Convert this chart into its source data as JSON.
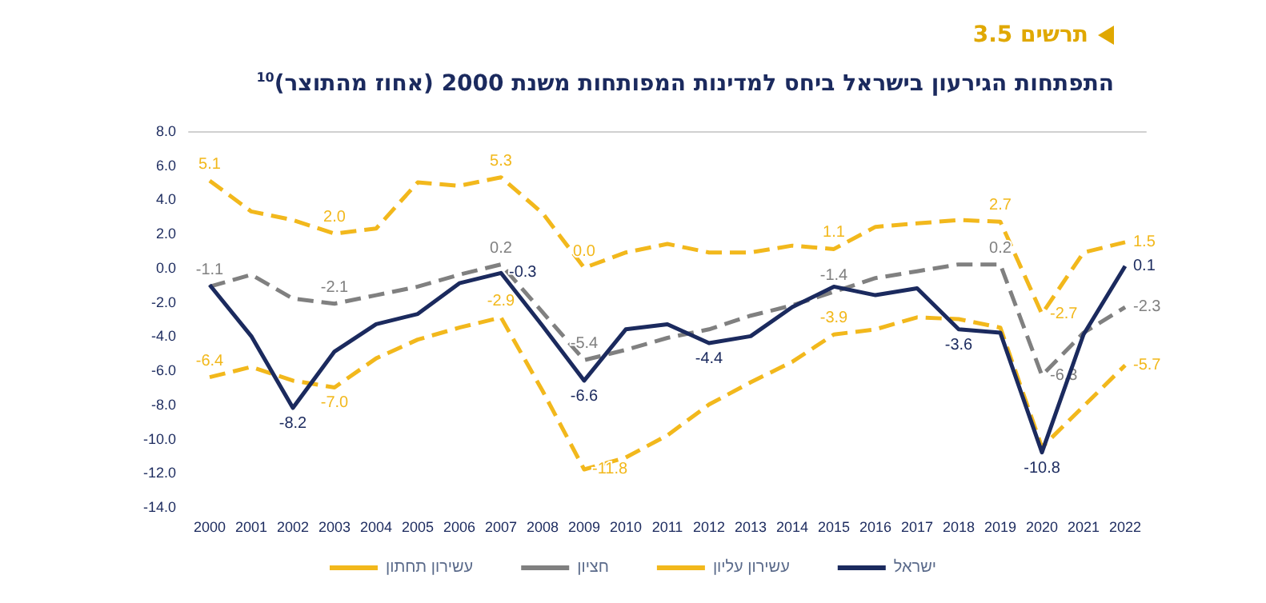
{
  "chart_data": {
    "type": "line",
    "subtitle": "תרשים 3.5",
    "title": "התפתחות הגירעון בישראל ביחס למדינות המפותחות משנת 2000 (אחוז מהתוצר)$^{10}$",
    "categories": [
      "2000",
      "2001",
      "2002",
      "2003",
      "2004",
      "2005",
      "2006",
      "2007",
      "2008",
      "2009",
      "2010",
      "2011",
      "2012",
      "2013",
      "2014",
      "2015",
      "2016",
      "2017",
      "2018",
      "2019",
      "2020",
      "2021",
      "2022"
    ],
    "ylim": [
      -14,
      8
    ],
    "yticks": [
      {
        "value": -14,
        "label": "-14.0"
      },
      {
        "value": -12,
        "label": "-12.0"
      },
      {
        "value": -10,
        "label": "-10.0"
      },
      {
        "value": -8,
        "label": "-8.0"
      },
      {
        "value": -6,
        "label": "-6.0"
      },
      {
        "value": -4,
        "label": "-4.0"
      },
      {
        "value": -2,
        "label": "-2.0"
      },
      {
        "value": 0,
        "label": "0.0"
      },
      {
        "value": 2,
        "label": "2.0"
      },
      {
        "value": 4,
        "label": "4.0"
      },
      {
        "value": 6,
        "label": "6.0"
      },
      {
        "value": 8,
        "label": "8.0"
      }
    ],
    "legend": "bottom",
    "marker": "none",
    "series": [
      {
        "name": "ישראל",
        "color": "#1b2a5e",
        "line_style": "solid",
        "values": [
          -1.0,
          -4.0,
          -8.2,
          -4.9,
          -3.3,
          -2.7,
          -0.9,
          -0.3,
          -3.4,
          -6.6,
          -3.6,
          -3.3,
          -4.4,
          -4.0,
          -2.3,
          -1.1,
          -1.6,
          -1.2,
          -3.6,
          -3.8,
          -10.8,
          -3.9,
          0.1
        ],
        "value_labels": [
          null,
          null,
          "-8.2",
          null,
          null,
          null,
          null,
          "-0.3",
          null,
          "-6.6",
          null,
          null,
          "-4.4",
          null,
          null,
          null,
          null,
          null,
          "-3.6",
          null,
          "-10.8",
          null,
          "0.1"
        ]
      },
      {
        "name": "עשירון עליון",
        "color": "#f2b81c",
        "line_style": "dashed",
        "values": [
          5.1,
          3.3,
          2.8,
          2.0,
          2.3,
          5.0,
          4.8,
          5.3,
          3.2,
          0.0,
          0.9,
          1.4,
          0.9,
          0.9,
          1.3,
          1.1,
          2.4,
          2.6,
          2.8,
          2.7,
          -2.7,
          0.9,
          1.5
        ],
        "value_labels": [
          "5.1",
          null,
          null,
          "2.0",
          null,
          null,
          null,
          "5.3",
          null,
          "0.0",
          null,
          null,
          null,
          null,
          null,
          "1.1",
          null,
          null,
          null,
          "2.7",
          "-2.7",
          null,
          "1.5"
        ]
      },
      {
        "name": "חציון",
        "color": "#808080",
        "line_style": "dashed",
        "values": [
          -1.1,
          -0.4,
          -1.8,
          -2.1,
          -1.6,
          -1.1,
          -0.4,
          0.2,
          -2.6,
          -5.4,
          -4.8,
          -4.1,
          -3.6,
          -2.8,
          -2.2,
          -1.4,
          -0.6,
          -0.2,
          0.2,
          0.2,
          -6.3,
          -3.8,
          -2.3
        ],
        "value_labels": [
          "-1.1",
          null,
          null,
          "-2.1",
          null,
          null,
          null,
          "0.2",
          null,
          "-5.4",
          null,
          null,
          null,
          null,
          null,
          "-1.4",
          null,
          null,
          null,
          "0.2",
          "-6.3",
          null,
          "-2.3"
        ]
      },
      {
        "name": "עשירון תחתון",
        "color": "#f2b81c",
        "line_style": "dashed",
        "values": [
          -6.4,
          -5.8,
          -6.6,
          -7.0,
          -5.3,
          -4.2,
          -3.5,
          -2.9,
          -7.2,
          -11.8,
          -11.1,
          -9.8,
          -8.0,
          -6.7,
          -5.5,
          -3.9,
          -3.6,
          -2.9,
          -3.0,
          -3.5,
          -10.5,
          -8.1,
          -5.7
        ],
        "value_labels": [
          "-6.4",
          null,
          null,
          "-7.0",
          null,
          null,
          null,
          "-2.9",
          null,
          "-11.8",
          null,
          null,
          null,
          null,
          null,
          "-3.9",
          null,
          null,
          null,
          null,
          null,
          null,
          "-5.7"
        ]
      }
    ]
  }
}
